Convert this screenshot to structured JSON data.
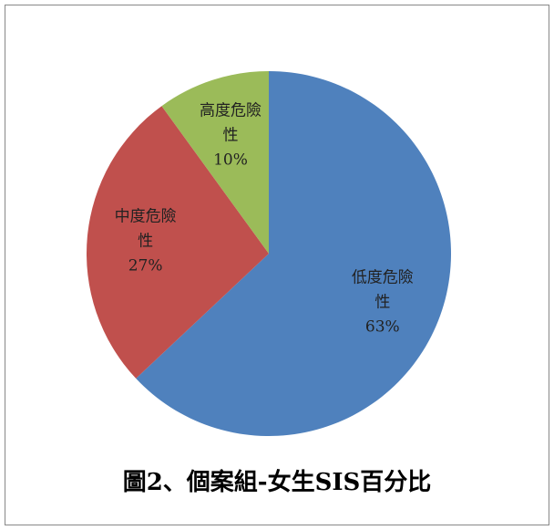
{
  "chart_data": {
    "type": "pie",
    "title": "圖2、個案組-女生SIS百分比",
    "categories": [
      "低度危險性",
      "中度危險性",
      "高度危險性"
    ],
    "values": [
      63,
      27,
      10
    ],
    "value_labels": [
      "63%",
      "27%",
      "10%"
    ],
    "colors": [
      "#4f81bd",
      "#c0504d",
      "#9bbb59"
    ]
  }
}
